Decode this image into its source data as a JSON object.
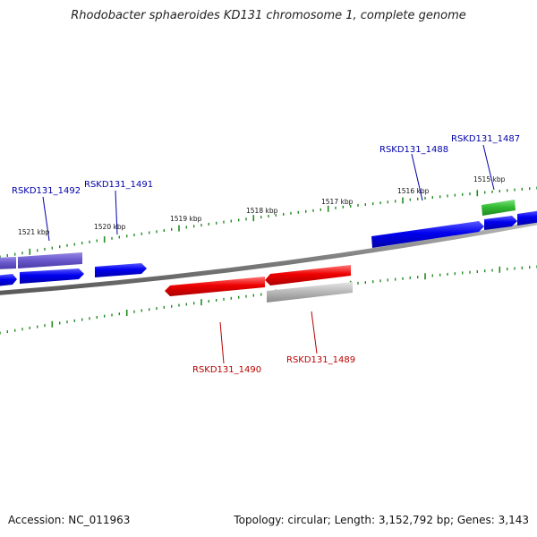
{
  "title": "Rhodobacter sphaeroides KD131 chromosome 1, complete genome",
  "accession_label": "Accession: NC_011963",
  "summary_label": "Topology: circular; Length: 3,152,792 bp; Genes: 3,143",
  "colors": {
    "forward": "#0000ee",
    "forward_alt": "#6a5acd",
    "reverse": "#ee0000",
    "reverse_alt": "#bbbbbb",
    "rna": "#33bb33",
    "backbone": "#888888",
    "ticks": "#228b22",
    "label_forward": "#0000aa",
    "label_reverse": "#bb0000"
  },
  "ticks": [
    "1515 kbp",
    "1516 kbp",
    "1517 kbp",
    "1518 kbp",
    "1519 kbp",
    "1520 kbp",
    "1521 kbp"
  ],
  "gene_labels": [
    {
      "name": "RSKD131_1492",
      "strand": "forward"
    },
    {
      "name": "RSKD131_1491",
      "strand": "forward"
    },
    {
      "name": "RSKD131_1488",
      "strand": "forward"
    },
    {
      "name": "RSKD131_1487",
      "strand": "forward"
    },
    {
      "name": "RSKD131_1490",
      "strand": "reverse"
    },
    {
      "name": "RSKD131_1489",
      "strand": "reverse"
    }
  ]
}
